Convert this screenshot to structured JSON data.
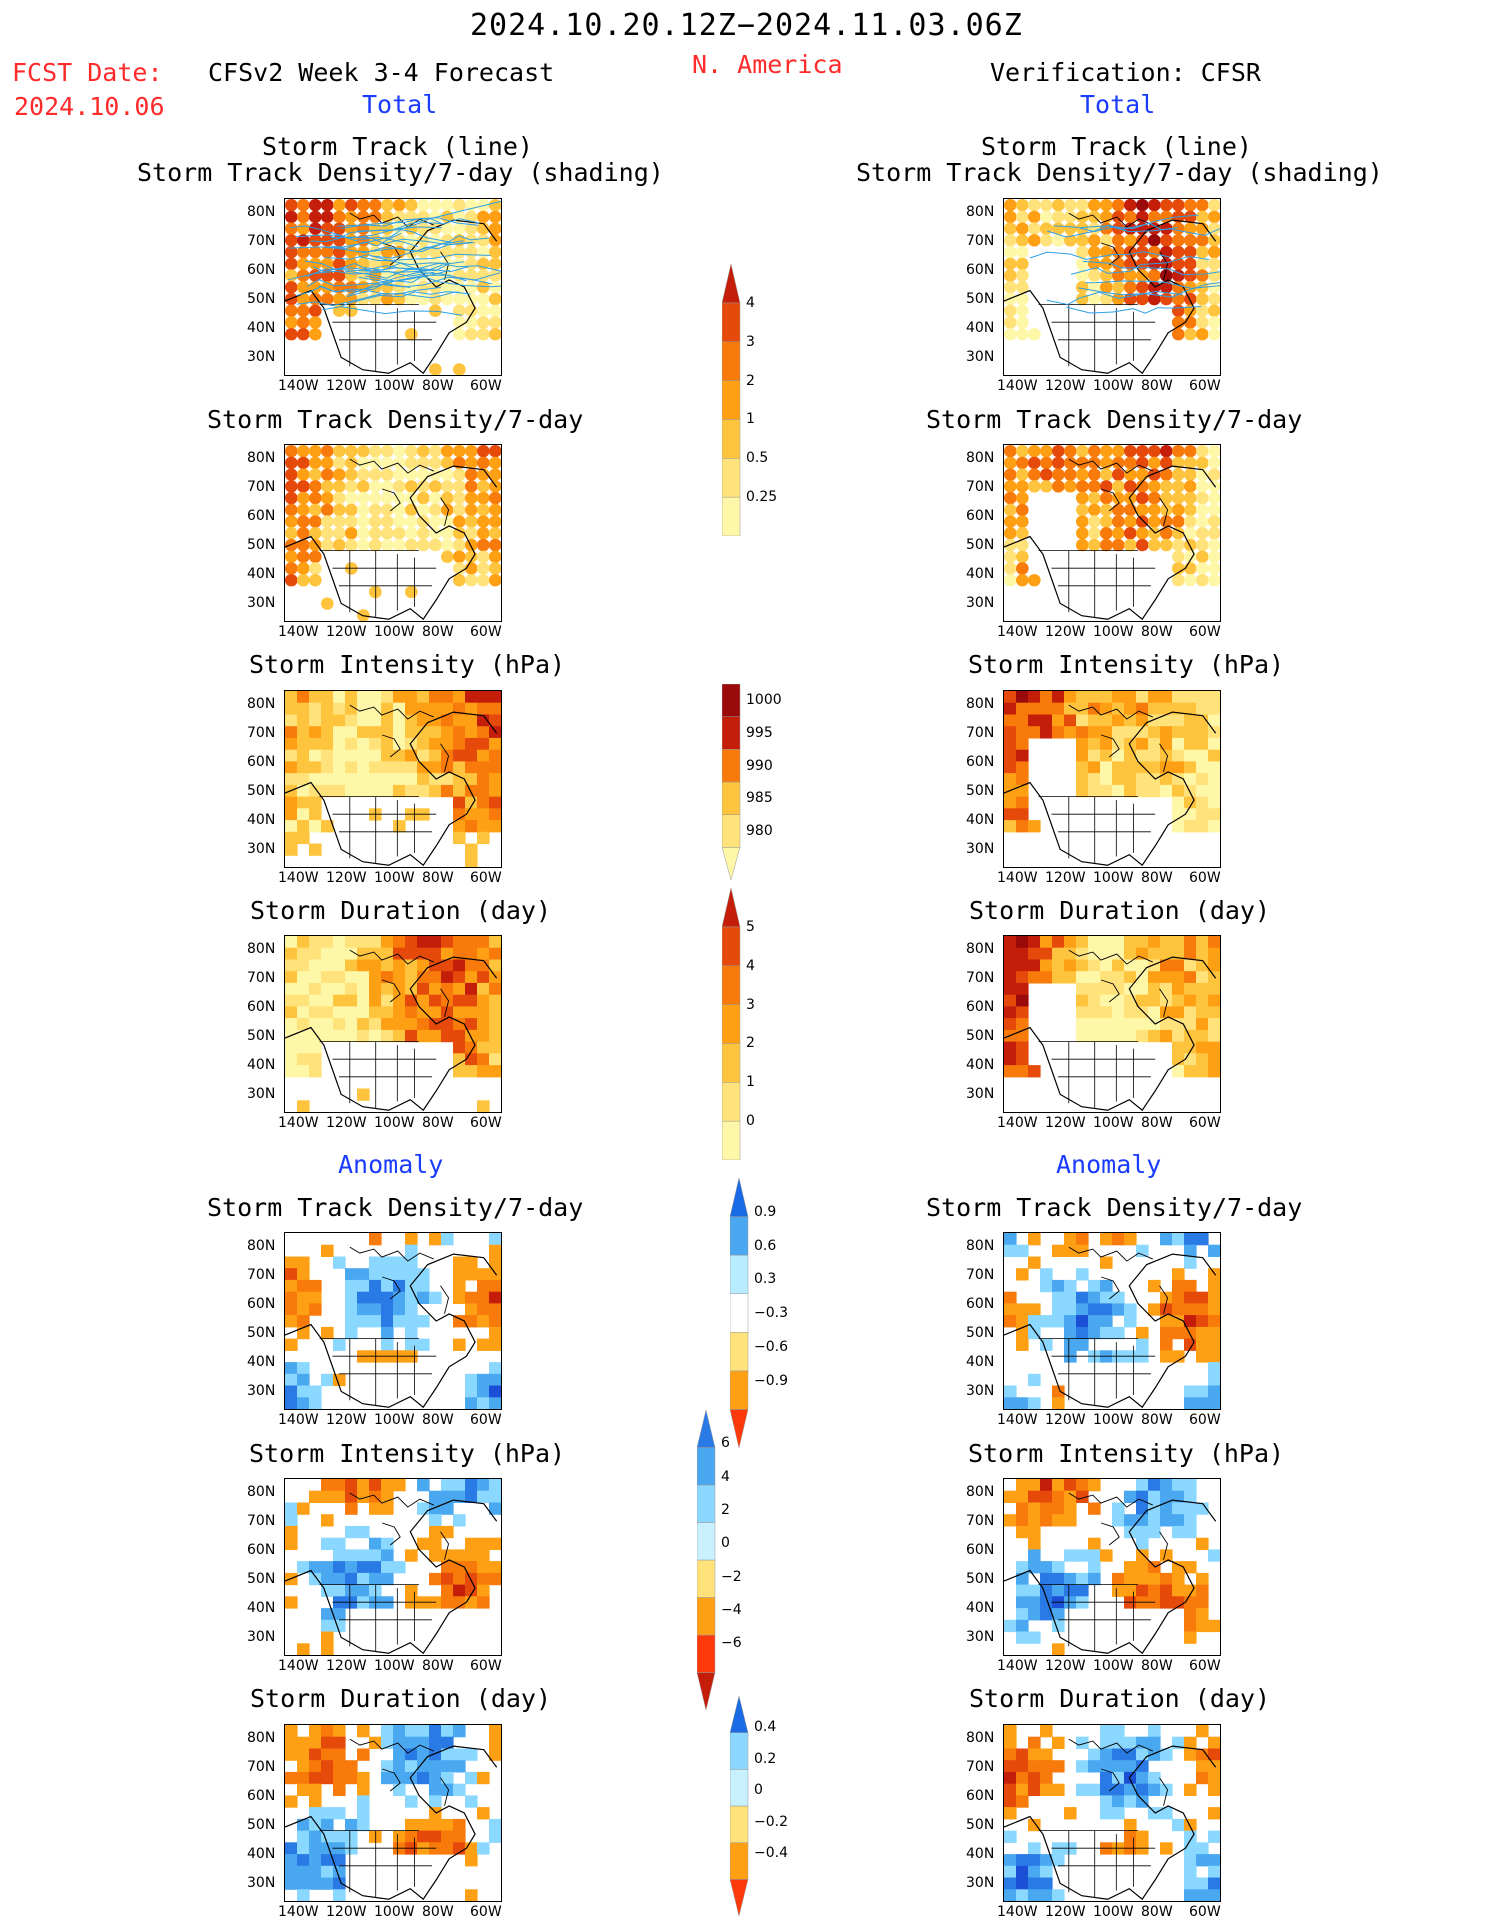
{
  "header": {
    "date_range": "2024.10.20.12Z−2024.11.03.06Z",
    "fcst_label": "FCST Date:",
    "fcst_date": "2024.10.06",
    "left_title": "CFSv2 Week 3-4 Forecast",
    "region": "N. America",
    "right_title": "Verification: CFSR",
    "left_total": "Total",
    "right_total": "Total",
    "left_anomaly": "Anomaly",
    "right_anomaly": "Anomaly"
  },
  "panels": {
    "track_line": "Storm Track (line)",
    "track_shading": "Storm Track Density/7-day (shading)",
    "density": "Storm Track Density/7-day",
    "intensity": "Storm Intensity (hPa)",
    "duration": "Storm Duration (day)"
  },
  "axes": {
    "lat": [
      "80N",
      "70N",
      "60N",
      "50N",
      "40N",
      "30N"
    ],
    "lon": [
      "140W",
      "120W",
      "100W",
      "80W",
      "60W"
    ]
  },
  "colorbars": {
    "density": [
      "4",
      "3",
      "2",
      "1",
      "0.5",
      "0.25"
    ],
    "intensity": [
      "1000",
      "995",
      "990",
      "985",
      "980"
    ],
    "duration": [
      "5",
      "4",
      "3",
      "2",
      "1",
      "0"
    ],
    "anom_density": [
      "0.9",
      "0.6",
      "0.3",
      "−0.3",
      "−0.6",
      "−0.9"
    ],
    "anom_intensity": [
      "6",
      "4",
      "2",
      "0",
      "−2",
      "−4",
      "−6"
    ],
    "anom_duration": [
      "0.4",
      "0.2",
      "0",
      "−0.2",
      "−0.4"
    ]
  },
  "colors": {
    "warm": [
      "#fff7a8",
      "#ffe27a",
      "#ffc43d",
      "#ffa014",
      "#f77a0a",
      "#e64a0a",
      "#c41e0a",
      "#9a0a0a"
    ],
    "cool": [
      "#c8f0ff",
      "#8ad8ff",
      "#4aa8f0",
      "#2a7ae6",
      "#1a4fd6"
    ],
    "track_line": "#2ea0e6"
  }
}
